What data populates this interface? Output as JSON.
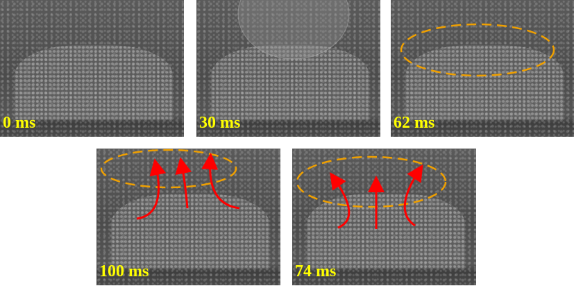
{
  "panels": [
    {
      "label": "0 ms"
    },
    {
      "label": "30 ms"
    },
    {
      "label": "62 ms",
      "annotation": "dashed-ellipse"
    },
    {
      "label": "100 ms",
      "annotation": "dashed-ellipse with upward red arrows"
    },
    {
      "label": "74 ms",
      "annotation": "dashed-ellipse with upward red arrows"
    }
  ],
  "colors": {
    "label": "#ffff00",
    "ellipse": "#f0a000",
    "arrow": "#ff0000"
  }
}
